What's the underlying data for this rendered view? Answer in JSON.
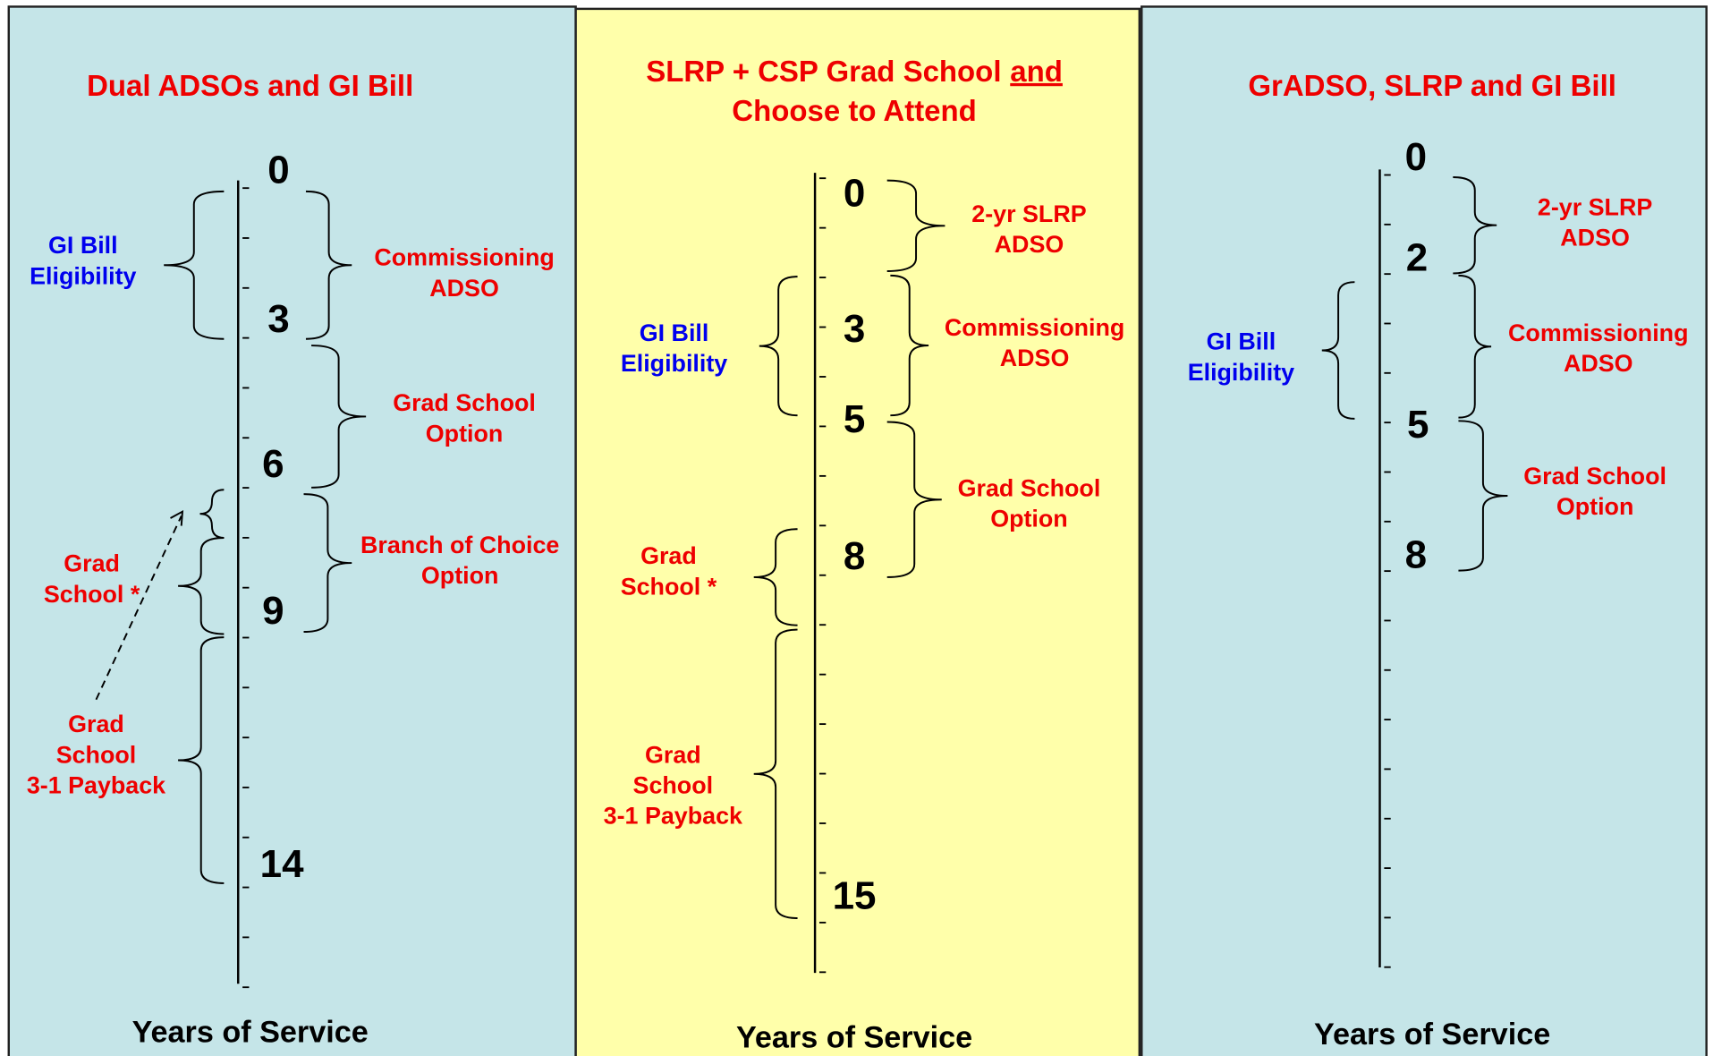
{
  "panels": [
    {
      "title": [
        [
          {
            "text": "Dual ADSOs and GI Bill"
          }
        ]
      ],
      "years": [
        "0",
        "3",
        "6",
        "9",
        "14"
      ],
      "brackets": [
        {
          "lines": [
            "GI Bill",
            "Eligibility"
          ],
          "color": "#0000ee"
        },
        {
          "lines": [
            "Commissioning",
            "ADSO"
          ],
          "color": "#ee0000"
        },
        {
          "lines": [
            "Grad School",
            "Option"
          ],
          "color": "#ee0000"
        },
        {
          "lines": [
            "Branch of Choice",
            "Option"
          ],
          "color": "#ee0000"
        },
        {
          "lines": [
            "Grad",
            "School *"
          ],
          "color": "#ee0000"
        },
        {
          "lines": [
            "Grad",
            "School",
            "3-1 Payback"
          ],
          "color": "#ee0000"
        }
      ],
      "axis_label": "Years of Service"
    },
    {
      "title": [
        [
          {
            "text": "SLRP + CSP Grad School"
          },
          {
            "text": "and",
            "underline": true
          }
        ],
        [
          {
            "text": "Choose to Attend"
          }
        ]
      ],
      "years": [
        "0",
        "3",
        "5",
        "8",
        "15"
      ],
      "brackets": [
        {
          "lines": [
            "2-yr SLRP",
            "ADSO"
          ],
          "color": "#ee0000"
        },
        {
          "lines": [
            "Commissioning",
            "ADSO"
          ],
          "color": "#ee0000"
        },
        {
          "lines": [
            "GI Bill",
            "Eligibility"
          ],
          "color": "#0000ee"
        },
        {
          "lines": [
            "Grad School",
            "Option"
          ],
          "color": "#ee0000"
        },
        {
          "lines": [
            "Grad",
            "School *"
          ],
          "color": "#ee0000"
        },
        {
          "lines": [
            "Grad",
            "School",
            "3-1 Payback"
          ],
          "color": "#ee0000"
        }
      ],
      "axis_label": "Years of Service"
    },
    {
      "title": [
        [
          {
            "text": "GrADSO, SLRP and GI Bill"
          }
        ]
      ],
      "years": [
        "0",
        "2",
        "5",
        "8"
      ],
      "brackets": [
        {
          "lines": [
            "2-yr SLRP",
            "ADSO"
          ],
          "color": "#ee0000"
        },
        {
          "lines": [
            "Commissioning",
            "ADSO"
          ],
          "color": "#ee0000"
        },
        {
          "lines": [
            "GI Bill",
            "Eligibility"
          ],
          "color": "#0000ee"
        },
        {
          "lines": [
            "Grad School",
            "Option"
          ],
          "color": "#ee0000"
        }
      ],
      "axis_label": "Years of Service"
    }
  ]
}
